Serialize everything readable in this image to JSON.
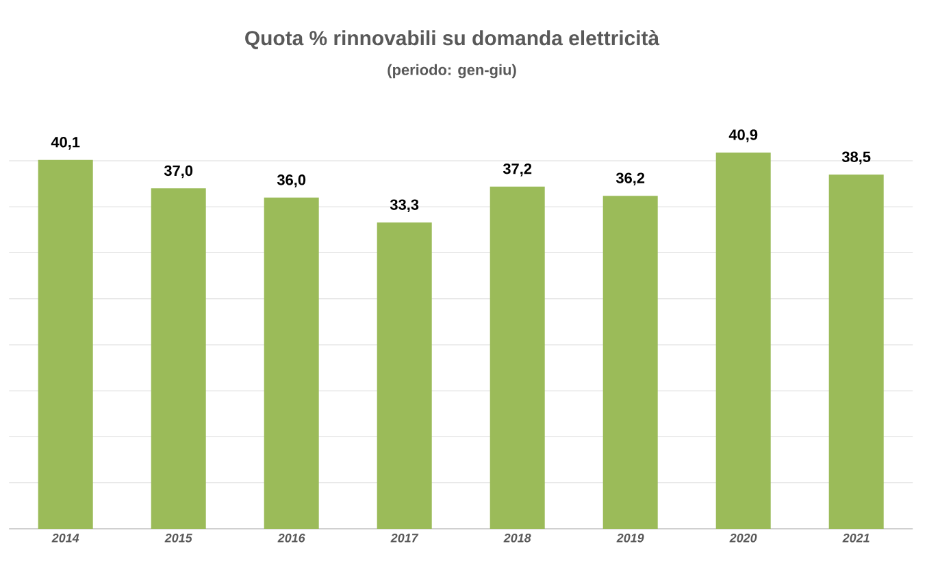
{
  "chart_data": {
    "type": "bar",
    "title": "Quota % rinnovabili su domanda elettricità",
    "subtitle": "(periodo: gen-giu)",
    "categories": [
      "2014",
      "2015",
      "2016",
      "2017",
      "2018",
      "2019",
      "2020",
      "2021"
    ],
    "values": [
      40.1,
      37.0,
      36.0,
      33.3,
      37.2,
      36.2,
      40.9,
      38.5
    ],
    "value_labels": [
      "40,1",
      "37,0",
      "36,0",
      "33,3",
      "37,2",
      "36,2",
      "40,9",
      "38,5"
    ],
    "color": "#9bbb59",
    "grid": "y",
    "tick_labels": "x"
  }
}
